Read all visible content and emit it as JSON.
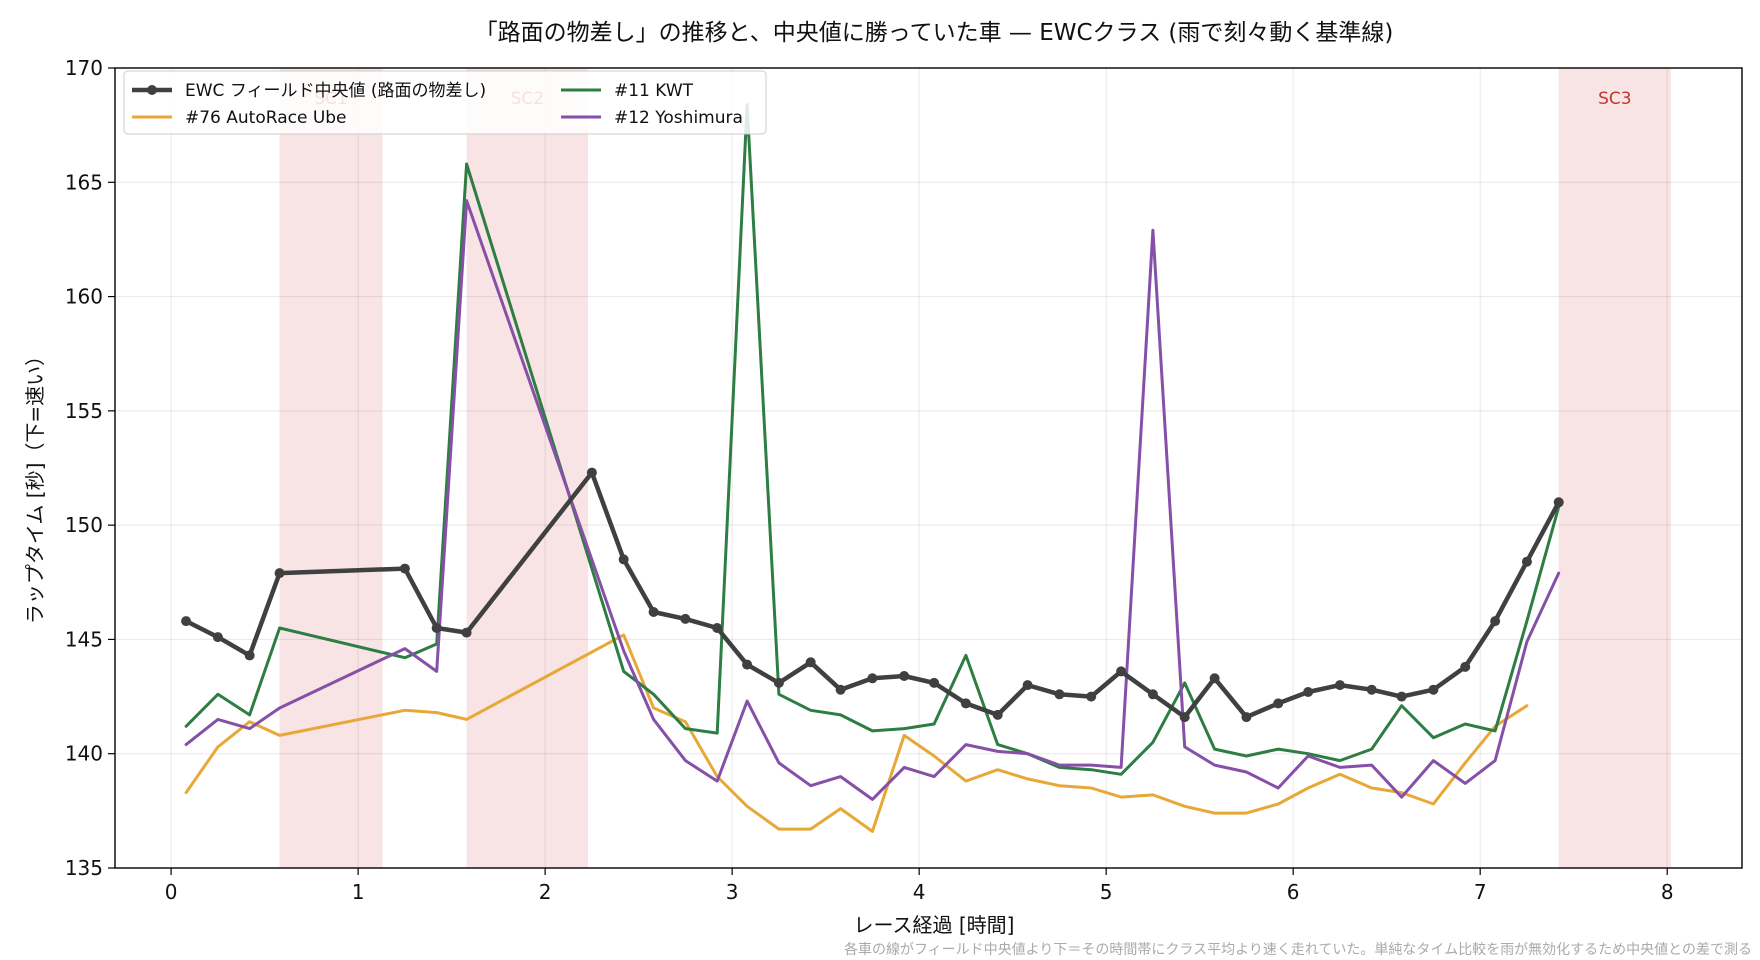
{
  "chart_data": {
    "type": "line",
    "title": "「路面の物差し」の推移と、中央値に勝っていた車 — EWCクラス (雨で刻々動く基準線)",
    "xlabel": "レース経過 [時間]",
    "ylabel": "ラップタイム [秒]（下=速い）",
    "footnote": "各車の線がフィールド中央値より下＝その時間帯にクラス平均より速く走れていた。単純なタイム比較を雨が無効化するため中央値との差で測る",
    "xlim": [
      -0.3,
      8.4
    ],
    "ylim": [
      135,
      170
    ],
    "xticks": [
      0,
      1,
      2,
      3,
      4,
      5,
      6,
      7,
      8
    ],
    "yticks": [
      135,
      140,
      145,
      150,
      155,
      160,
      165,
      170
    ],
    "grid": true,
    "legend_position": "top-left",
    "safety_car_periods": [
      {
        "label": "SC1",
        "start": 0.58,
        "end": 1.13
      },
      {
        "label": "SC2",
        "start": 1.58,
        "end": 2.23
      },
      {
        "label": "SC3",
        "start": 7.42,
        "end": 8.02
      }
    ],
    "series": [
      {
        "name": "EWC フィールド中央値 (路面の物差し)",
        "color": "#404040",
        "style": "thick-markers",
        "x": [
          0.08,
          0.25,
          0.42,
          0.58,
          1.25,
          1.42,
          1.58,
          2.25,
          2.42,
          2.58,
          2.75,
          2.92,
          3.08,
          3.25,
          3.42,
          3.58,
          3.75,
          3.92,
          4.08,
          4.25,
          4.42,
          4.58,
          4.75,
          4.92,
          5.08,
          5.25,
          5.42,
          5.58,
          5.75,
          5.92,
          6.08,
          6.25,
          6.42,
          6.58,
          6.75,
          6.92,
          7.08,
          7.25,
          7.42
        ],
        "y": [
          145.8,
          145.1,
          144.3,
          147.9,
          148.1,
          145.5,
          145.3,
          152.3,
          148.5,
          146.2,
          145.9,
          145.5,
          143.9,
          143.1,
          144.0,
          142.8,
          143.3,
          143.4,
          143.1,
          142.2,
          141.7,
          143.0,
          142.6,
          142.5,
          143.6,
          142.6,
          141.6,
          143.3,
          141.6,
          142.2,
          142.7,
          143.0,
          142.8,
          142.5,
          142.8,
          143.8,
          145.8,
          148.4,
          151.0
        ]
      },
      {
        "name": "#76 AutoRace Ube",
        "color": "#e8a838",
        "style": "line",
        "x": [
          0.08,
          0.25,
          0.42,
          0.58,
          1.25,
          1.42,
          1.58,
          2.42,
          2.58,
          2.75,
          2.92,
          3.08,
          3.25,
          3.42,
          3.58,
          3.75,
          3.92,
          4.08,
          4.25,
          4.42,
          4.58,
          4.75,
          4.92,
          5.08,
          5.25,
          5.42,
          5.58,
          5.75,
          5.92,
          6.08,
          6.25,
          6.42,
          6.58,
          6.75,
          6.92,
          7.08,
          7.25
        ],
        "y": [
          138.3,
          140.3,
          141.4,
          140.8,
          141.9,
          141.8,
          141.5,
          145.2,
          142.0,
          141.4,
          139.0,
          137.7,
          136.7,
          136.7,
          137.6,
          136.6,
          140.8,
          139.9,
          138.8,
          139.3,
          138.9,
          138.6,
          138.5,
          138.1,
          138.2,
          137.7,
          137.4,
          137.4,
          137.8,
          138.5,
          139.1,
          138.5,
          138.3,
          137.8,
          139.6,
          141.2,
          142.1
        ]
      },
      {
        "name": "#11 KWT",
        "color": "#2e7d43",
        "style": "line",
        "x": [
          0.08,
          0.25,
          0.42,
          0.58,
          1.25,
          1.42,
          1.58,
          2.42,
          2.58,
          2.75,
          2.92,
          3.08,
          3.25,
          3.42,
          3.58,
          3.75,
          3.92,
          4.08,
          4.25,
          4.42,
          4.58,
          4.75,
          4.92,
          5.08,
          5.25,
          5.42,
          5.58,
          5.75,
          5.92,
          6.08,
          6.25,
          6.42,
          6.58,
          6.75,
          6.92,
          7.08,
          7.25,
          7.42
        ],
        "y": [
          141.2,
          142.6,
          141.7,
          145.5,
          144.2,
          144.8,
          165.8,
          143.6,
          142.6,
          141.1,
          140.9,
          168.4,
          142.6,
          141.9,
          141.7,
          141.0,
          141.1,
          141.3,
          144.3,
          140.4,
          140.0,
          139.4,
          139.3,
          139.1,
          140.5,
          143.1,
          140.2,
          139.9,
          140.2,
          140.0,
          139.7,
          140.2,
          142.1,
          140.7,
          141.3,
          141.0,
          145.8,
          150.8
        ]
      },
      {
        "name": "#12 Yoshimura",
        "color": "#8650a8",
        "style": "line",
        "x": [
          0.08,
          0.25,
          0.42,
          0.58,
          1.25,
          1.42,
          1.58,
          2.42,
          2.58,
          2.75,
          2.92,
          3.08,
          3.25,
          3.42,
          3.58,
          3.75,
          3.92,
          4.08,
          4.25,
          4.42,
          4.58,
          4.75,
          4.92,
          5.08,
          5.25,
          5.42,
          5.58,
          5.75,
          5.92,
          6.08,
          6.25,
          6.42,
          6.58,
          6.75,
          6.92,
          7.08,
          7.25,
          7.42
        ],
        "y": [
          140.4,
          141.5,
          141.1,
          142.0,
          144.6,
          143.6,
          164.2,
          144.5,
          141.5,
          139.7,
          138.8,
          142.3,
          139.6,
          138.6,
          139.0,
          138.0,
          139.4,
          139.0,
          140.4,
          140.1,
          140.0,
          139.5,
          139.5,
          139.4,
          162.9,
          140.3,
          139.5,
          139.2,
          138.5,
          139.9,
          139.4,
          139.5,
          138.1,
          139.7,
          138.7,
          139.7,
          144.9,
          147.9
        ]
      }
    ]
  }
}
